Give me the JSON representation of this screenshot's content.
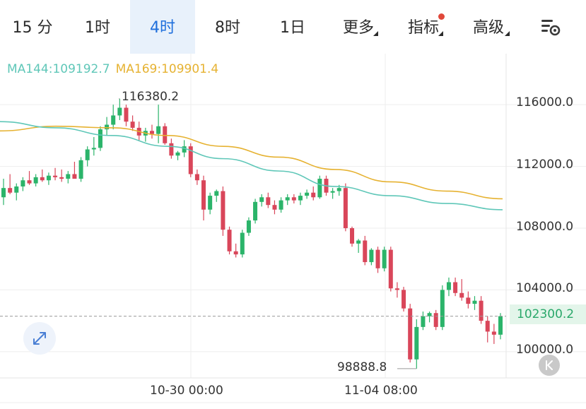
{
  "tabs": [
    {
      "label": "15 分",
      "active": false
    },
    {
      "label": "1时",
      "active": false
    },
    {
      "label": "4时",
      "active": true
    },
    {
      "label": "8时",
      "active": false
    },
    {
      "label": "1日",
      "active": false
    },
    {
      "label": "更多",
      "active": false
    },
    {
      "label": "指标",
      "active": false
    },
    {
      "label": "高级",
      "active": false
    }
  ],
  "ma_legend": {
    "ma144": "MA144:109192.7",
    "ma169": "MA169:109901.4"
  },
  "colors": {
    "up": "#2bb46a",
    "down": "#d9465a",
    "ma144": "#5fc7b8",
    "ma169": "#e6b231",
    "active_tab_bg": "#e8f1fb",
    "active_tab_text": "#1f6fdc"
  },
  "icons": {
    "settings": "chart-settings-icon",
    "expand": "expand-icon",
    "back": "chevron-left-icon"
  },
  "chart_data": {
    "type": "candlestick",
    "price_axis_labels": [
      "116000.0",
      "112000.0",
      "108000.0",
      "104000.0",
      "100000.0"
    ],
    "current_price": "102300.2",
    "high_label": "116380.2",
    "low_label": "98888.8",
    "time_axis_labels": [
      "10-30 00:00",
      "11-04 08:00"
    ],
    "y_range": [
      98300,
      119300
    ],
    "candles": [
      [
        110000,
        111200,
        109500,
        110600
      ],
      [
        110600,
        111500,
        110200,
        110300
      ],
      [
        110300,
        110900,
        109800,
        110700
      ],
      [
        110700,
        111300,
        110400,
        111100
      ],
      [
        111100,
        111700,
        110800,
        110900
      ],
      [
        110900,
        111500,
        110700,
        111300
      ],
      [
        111300,
        111800,
        111000,
        111100
      ],
      [
        111100,
        111600,
        110800,
        111400
      ],
      [
        111400,
        111900,
        111100,
        111300
      ],
      [
        111300,
        111800,
        111000,
        111200
      ],
      [
        111200,
        111700,
        110900,
        111500
      ],
      [
        111500,
        112300,
        111300,
        111200
      ],
      [
        111200,
        112600,
        111000,
        112400
      ],
      [
        112400,
        113300,
        112000,
        113100
      ],
      [
        113100,
        113900,
        112700,
        113200
      ],
      [
        113200,
        114600,
        113000,
        114400
      ],
      [
        114400,
        115200,
        114000,
        114700
      ],
      [
        114700,
        116000,
        114400,
        115300
      ],
      [
        115300,
        116380,
        115000,
        115800
      ],
      [
        115800,
        116000,
        114600,
        114900
      ],
      [
        114900,
        115300,
        114300,
        114500
      ],
      [
        114500,
        114900,
        113700,
        114000
      ],
      [
        114000,
        114500,
        113600,
        114300
      ],
      [
        114300,
        114700,
        113800,
        114100
      ],
      [
        114100,
        116000,
        113500,
        114600
      ],
      [
        114600,
        114800,
        113400,
        113500
      ],
      [
        113500,
        113800,
        112500,
        112700
      ],
      [
        112700,
        113000,
        112400,
        112900
      ],
      [
        112900,
        113700,
        112600,
        113300
      ],
      [
        113300,
        113500,
        111300,
        111500
      ],
      [
        111500,
        111800,
        110800,
        111100
      ],
      [
        111100,
        111400,
        108500,
        109200
      ],
      [
        109200,
        110300,
        108900,
        110100
      ],
      [
        110100,
        110500,
        109700,
        110400
      ],
      [
        110400,
        110700,
        107500,
        107900
      ],
      [
        107900,
        108100,
        106300,
        106500
      ],
      [
        106500,
        107000,
        106100,
        106300
      ],
      [
        106300,
        107900,
        106100,
        107700
      ],
      [
        107700,
        108700,
        107500,
        108500
      ],
      [
        108500,
        109900,
        108300,
        109700
      ],
      [
        109700,
        110200,
        109400,
        110000
      ],
      [
        110000,
        110300,
        109300,
        109500
      ],
      [
        109500,
        109800,
        108900,
        109200
      ],
      [
        109200,
        110000,
        109000,
        109800
      ],
      [
        109800,
        110200,
        109500,
        110000
      ],
      [
        110000,
        110200,
        109600,
        109800
      ],
      [
        109800,
        110300,
        109500,
        110100
      ],
      [
        110100,
        110500,
        109900,
        110300
      ],
      [
        110300,
        110700,
        109800,
        110000
      ],
      [
        110000,
        111400,
        109900,
        111200
      ],
      [
        111200,
        111400,
        110100,
        110300
      ],
      [
        110300,
        110600,
        109900,
        110400
      ],
      [
        110400,
        110800,
        110100,
        110600
      ],
      [
        110600,
        110900,
        107800,
        108000
      ],
      [
        108000,
        108100,
        106800,
        107000
      ],
      [
        107000,
        107300,
        106400,
        107200
      ],
      [
        107200,
        107500,
        105600,
        105800
      ],
      [
        105800,
        106700,
        105600,
        106600
      ],
      [
        106600,
        106800,
        105100,
        105400
      ],
      [
        105400,
        106800,
        105200,
        106600
      ],
      [
        106600,
        106800,
        103900,
        104100
      ],
      [
        104100,
        104500,
        103500,
        104000
      ],
      [
        104000,
        104200,
        102600,
        102800
      ],
      [
        102800,
        103100,
        99300,
        99500
      ],
      [
        99500,
        102100,
        98900,
        101600
      ],
      [
        101600,
        102600,
        101400,
        102300
      ],
      [
        102300,
        102600,
        101900,
        102500
      ],
      [
        102500,
        102700,
        101400,
        101600
      ],
      [
        101600,
        104300,
        101400,
        104000
      ],
      [
        104000,
        104800,
        103600,
        104500
      ],
      [
        104500,
        104800,
        103600,
        103800
      ],
      [
        103800,
        104700,
        103300,
        103500
      ],
      [
        103500,
        103900,
        102800,
        103100
      ],
      [
        103100,
        103600,
        102700,
        103300
      ],
      [
        103300,
        103600,
        101800,
        102000
      ],
      [
        102000,
        102300,
        100600,
        101300
      ],
      [
        101300,
        101800,
        100500,
        101100
      ],
      [
        101100,
        102500,
        100800,
        102300
      ]
    ],
    "ma144": [
      114900,
      114500,
      114000,
      113300,
      112500,
      111700,
      110700,
      110100,
      109600,
      109192.7
    ],
    "ma169": [
      114300,
      114600,
      114500,
      114000,
      113300,
      112600,
      111800,
      111000,
      110400,
      109901.4
    ],
    "grid": true
  }
}
